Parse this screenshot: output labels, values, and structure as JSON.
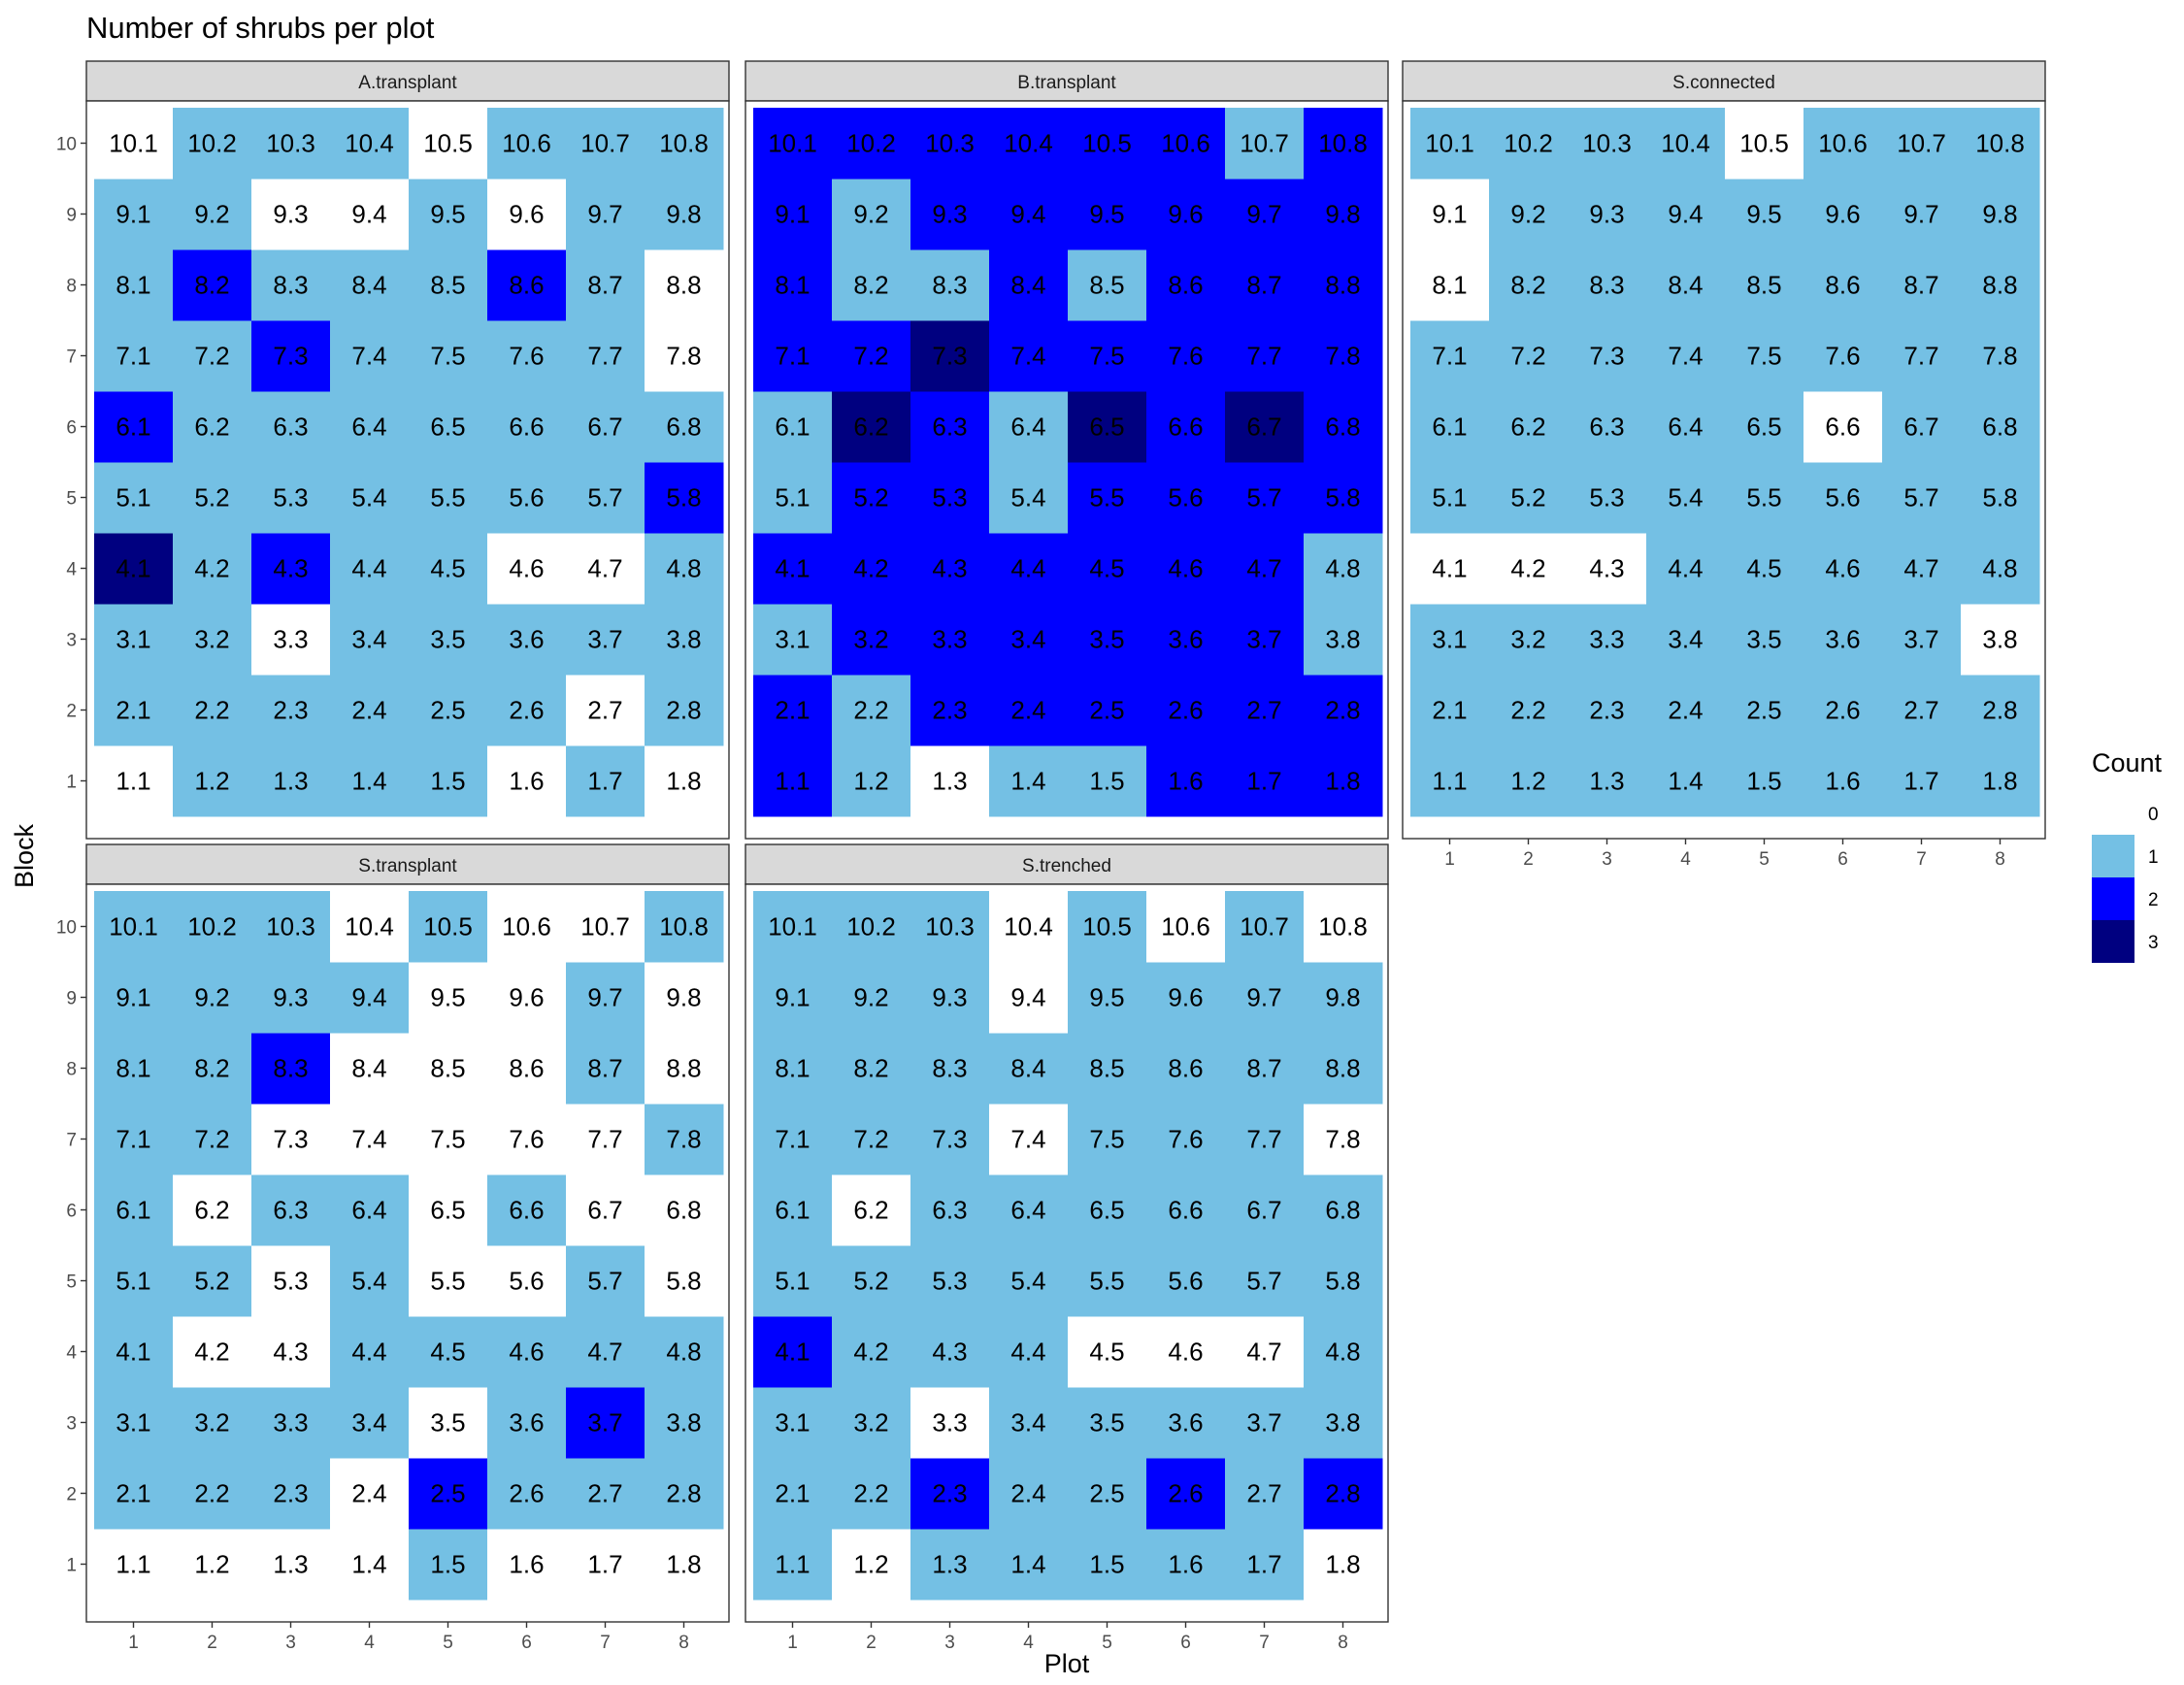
{
  "chart_data": {
    "type": "heatmap",
    "title": "Number of shrubs per plot",
    "xlabel": "Plot",
    "ylabel": "Block",
    "x": [
      1,
      2,
      3,
      4,
      5,
      6,
      7,
      8
    ],
    "y": [
      1,
      2,
      3,
      4,
      5,
      6,
      7,
      8,
      9,
      10
    ],
    "legend": {
      "title": "Count",
      "placement": "right",
      "levels": [
        {
          "value": 0,
          "label": "0",
          "color": "#ffffff"
        },
        {
          "value": 1,
          "label": "1",
          "color": "#74c0e4"
        },
        {
          "value": 2,
          "label": "2",
          "color": "#0000ff"
        },
        {
          "value": 3,
          "label": "3",
          "color": "#000080"
        }
      ]
    },
    "cell_label_rule": "block.plot",
    "panels": [
      {
        "name": "A.transplant",
        "counts_by_block": [
          [
            0,
            1,
            1,
            1,
            1,
            0,
            1,
            0
          ],
          [
            1,
            1,
            1,
            1,
            1,
            1,
            0,
            1
          ],
          [
            1,
            1,
            0,
            1,
            1,
            1,
            1,
            1
          ],
          [
            3,
            1,
            2,
            1,
            1,
            0,
            0,
            1
          ],
          [
            1,
            1,
            1,
            1,
            1,
            1,
            1,
            2
          ],
          [
            2,
            1,
            1,
            1,
            1,
            1,
            1,
            1
          ],
          [
            1,
            1,
            2,
            1,
            1,
            1,
            1,
            0
          ],
          [
            1,
            2,
            1,
            1,
            1,
            2,
            1,
            0
          ],
          [
            1,
            1,
            0,
            0,
            1,
            0,
            1,
            1
          ],
          [
            0,
            1,
            1,
            1,
            0,
            1,
            1,
            1
          ]
        ]
      },
      {
        "name": "B.transplant",
        "counts_by_block": [
          [
            2,
            1,
            0,
            1,
            1,
            2,
            2,
            2
          ],
          [
            2,
            1,
            2,
            2,
            2,
            2,
            2,
            2
          ],
          [
            1,
            2,
            2,
            2,
            2,
            2,
            2,
            1
          ],
          [
            2,
            2,
            2,
            2,
            2,
            2,
            2,
            1
          ],
          [
            1,
            2,
            2,
            1,
            2,
            2,
            2,
            2
          ],
          [
            1,
            3,
            2,
            1,
            3,
            2,
            3,
            2
          ],
          [
            2,
            2,
            3,
            2,
            2,
            2,
            2,
            2
          ],
          [
            2,
            1,
            1,
            2,
            1,
            2,
            2,
            2
          ],
          [
            2,
            1,
            2,
            2,
            2,
            2,
            2,
            2
          ],
          [
            2,
            2,
            2,
            2,
            2,
            2,
            1,
            2
          ]
        ]
      },
      {
        "name": "S.connected",
        "counts_by_block": [
          [
            1,
            1,
            1,
            1,
            1,
            1,
            1,
            1
          ],
          [
            1,
            1,
            1,
            1,
            1,
            1,
            1,
            1
          ],
          [
            1,
            1,
            1,
            1,
            1,
            1,
            1,
            0
          ],
          [
            0,
            0,
            0,
            1,
            1,
            1,
            1,
            1
          ],
          [
            1,
            1,
            1,
            1,
            1,
            1,
            1,
            1
          ],
          [
            1,
            1,
            1,
            1,
            1,
            0,
            1,
            1
          ],
          [
            1,
            1,
            1,
            1,
            1,
            1,
            1,
            1
          ],
          [
            0,
            1,
            1,
            1,
            1,
            1,
            1,
            1
          ],
          [
            0,
            1,
            1,
            1,
            1,
            1,
            1,
            1
          ],
          [
            1,
            1,
            1,
            1,
            0,
            1,
            1,
            1
          ]
        ]
      },
      {
        "name": "S.transplant",
        "counts_by_block": [
          [
            0,
            0,
            0,
            0,
            1,
            0,
            0,
            0
          ],
          [
            1,
            1,
            1,
            0,
            2,
            1,
            1,
            1
          ],
          [
            1,
            1,
            1,
            1,
            0,
            1,
            2,
            1
          ],
          [
            1,
            0,
            0,
            1,
            1,
            1,
            1,
            1
          ],
          [
            1,
            1,
            0,
            1,
            0,
            0,
            1,
            0
          ],
          [
            1,
            0,
            1,
            1,
            0,
            1,
            0,
            0
          ],
          [
            1,
            1,
            0,
            0,
            0,
            0,
            0,
            1
          ],
          [
            1,
            1,
            2,
            0,
            0,
            0,
            1,
            0
          ],
          [
            1,
            1,
            1,
            1,
            0,
            0,
            1,
            0
          ],
          [
            1,
            1,
            1,
            0,
            1,
            0,
            0,
            1
          ]
        ]
      },
      {
        "name": "S.trenched",
        "counts_by_block": [
          [
            1,
            0,
            1,
            1,
            1,
            1,
            1,
            0
          ],
          [
            1,
            1,
            2,
            1,
            1,
            2,
            1,
            2
          ],
          [
            1,
            1,
            0,
            1,
            1,
            1,
            1,
            1
          ],
          [
            2,
            1,
            1,
            1,
            0,
            0,
            0,
            1
          ],
          [
            1,
            1,
            1,
            1,
            1,
            1,
            1,
            1
          ],
          [
            1,
            0,
            1,
            1,
            1,
            1,
            1,
            1
          ],
          [
            1,
            1,
            1,
            0,
            1,
            1,
            1,
            0
          ],
          [
            1,
            1,
            1,
            1,
            1,
            1,
            1,
            1
          ],
          [
            1,
            1,
            1,
            0,
            1,
            1,
            1,
            1
          ],
          [
            1,
            1,
            1,
            0,
            1,
            0,
            1,
            0
          ]
        ]
      }
    ]
  }
}
